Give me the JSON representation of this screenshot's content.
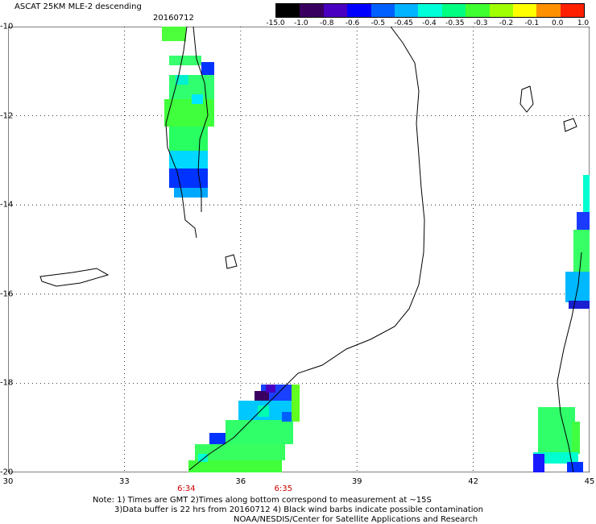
{
  "header": {
    "title": "ASCAT 25KM MLE-2 descending",
    "date": "20160712"
  },
  "colorbar": {
    "labels": [
      "-15.0",
      "-1.0",
      "-0.8",
      "-0.6",
      "-0.5",
      "-0.45",
      "-0.4",
      "-0.35",
      "-0.3",
      "-0.2",
      "-0.1",
      "0.0",
      "1.0"
    ],
    "colors": [
      "#000000",
      "#3a0060",
      "#4a00c0",
      "#0000ff",
      "#0060ff",
      "#00b4ff",
      "#00ffd8",
      "#00ff80",
      "#40ff30",
      "#a0ff00",
      "#ffff00",
      "#ff9000",
      "#ff2000"
    ]
  },
  "axes": {
    "x_labels": [
      "30",
      "33",
      "36",
      "39",
      "42",
      "45"
    ],
    "y_labels": [
      "-10",
      "-12",
      "-14",
      "-16",
      "-18",
      "-20"
    ],
    "lon_range": [
      30,
      45
    ],
    "lat_range": [
      -20,
      -10
    ],
    "grid": "dotted"
  },
  "times": [
    {
      "label": "6:34",
      "lon": 34.6
    },
    {
      "label": "6:35",
      "lon": 37.1
    }
  ],
  "notes": {
    "line1": "Note: 1) Times are GMT 2)Times along bottom correspond to measurement at ~15S",
    "line2": "3)Data buffer is 22 hrs from 20160712 4) Black wind barbs indicate possible contamination",
    "line3": "NOAA/NESDIS/Center for Satellite Applications and Research"
  }
}
